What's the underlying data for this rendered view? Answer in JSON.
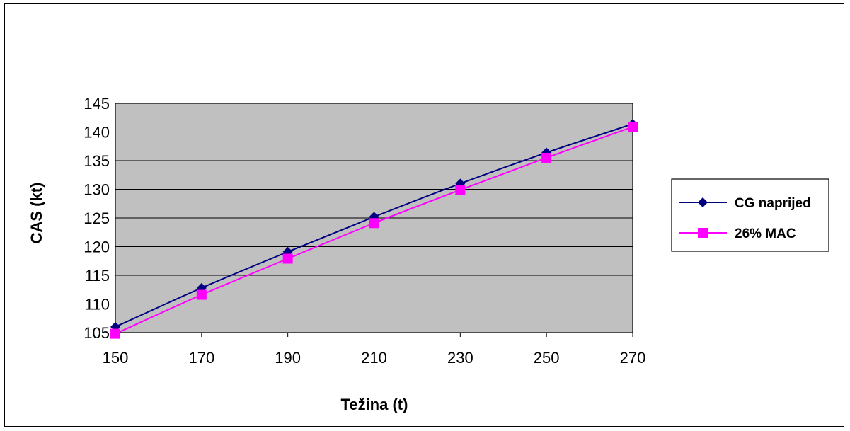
{
  "chart_data": {
    "type": "line",
    "title": "",
    "xlabel": "Težina (t)",
    "ylabel": "CAS (kt)",
    "xlim": [
      150,
      270
    ],
    "ylim": [
      105,
      145
    ],
    "x_ticks": [
      "150",
      "170",
      "190",
      "210",
      "230",
      "250",
      "270"
    ],
    "y_ticks": [
      "105",
      "110",
      "115",
      "120",
      "125",
      "130",
      "135",
      "140",
      "145"
    ],
    "grid": true,
    "plot_background": "#c0c0c0",
    "legend_position": "right",
    "x": [
      150,
      170,
      190,
      210,
      230,
      250,
      270
    ],
    "series": [
      {
        "name": "CG naprijed",
        "color": "#000080",
        "marker": "diamond",
        "values": [
          106,
          112.8,
          119.1,
          125.2,
          131,
          136.4,
          141.4
        ]
      },
      {
        "name": "26% MAC",
        "color": "#ff00ff",
        "marker": "square",
        "values": [
          104.8,
          111.6,
          117.9,
          124.1,
          129.9,
          135.5,
          140.9
        ]
      }
    ]
  }
}
